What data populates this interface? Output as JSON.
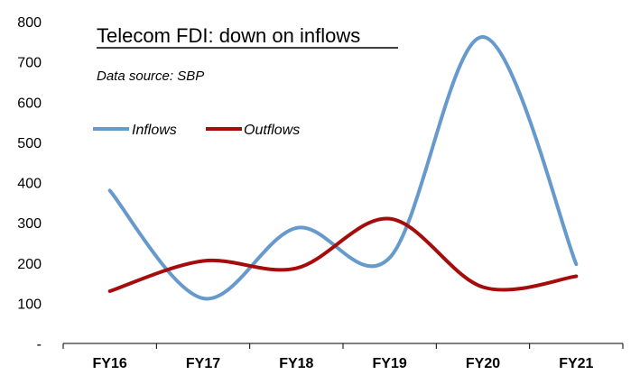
{
  "chart_data": {
    "type": "line",
    "title": "Telecom FDI: down on inflows",
    "subtitle": "Data source: SBP",
    "categories": [
      "FY16",
      "FY17",
      "FY18",
      "FY19",
      "FY20",
      "FY21"
    ],
    "y_ticks": [
      "-",
      "100",
      "200",
      "300",
      "400",
      "500",
      "600",
      "700",
      "800"
    ],
    "ylim": [
      0,
      800
    ],
    "grid": false,
    "legend_position": "top-left",
    "series": [
      {
        "name": "Inflows",
        "color": "#6699cc",
        "values": [
          380,
          112,
          287,
          213,
          762,
          197
        ]
      },
      {
        "name": "Outflows",
        "color": "#a50d0d",
        "values": [
          130,
          205,
          187,
          310,
          140,
          167
        ]
      }
    ]
  }
}
